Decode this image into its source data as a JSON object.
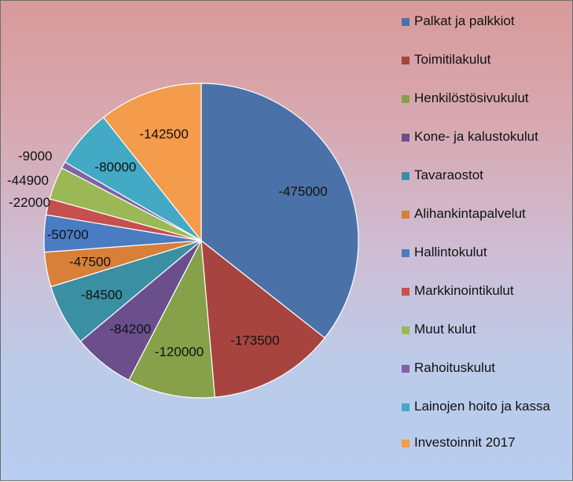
{
  "chart_data": {
    "type": "pie",
    "categories": [
      "Palkat ja palkkiot",
      "Toimitilakulut",
      "Henkilöstösivukulut",
      "Kone- ja kalustokulut",
      "Tavaraostot",
      "Alihankintapalvelut",
      "Hallintokulut",
      "Markkinointikulut",
      "Muut kulut",
      "Rahoituskulut",
      "Lainojen hoito ja kassa",
      "Investoinnit 2017"
    ],
    "values": [
      -475000,
      -173500,
      -120000,
      -84200,
      -84500,
      -47500,
      -50700,
      -22000,
      -44900,
      -9000,
      -80000,
      -142500
    ],
    "labels": [
      "-475000",
      "-173500",
      "-120000",
      "-84200",
      "-84500",
      "-47500",
      "-50700",
      "-22000",
      "-44900",
      "-9000",
      "-80000",
      "-142500"
    ],
    "colors": [
      "#4a72a8",
      "#a8443f",
      "#86a14a",
      "#6a4f8c",
      "#3b8fa3",
      "#d87f38",
      "#4a7cc2",
      "#c5504d",
      "#9ab956",
      "#7e62a6",
      "#43a9c4",
      "#f59b4c"
    ],
    "legend_position": "right"
  }
}
